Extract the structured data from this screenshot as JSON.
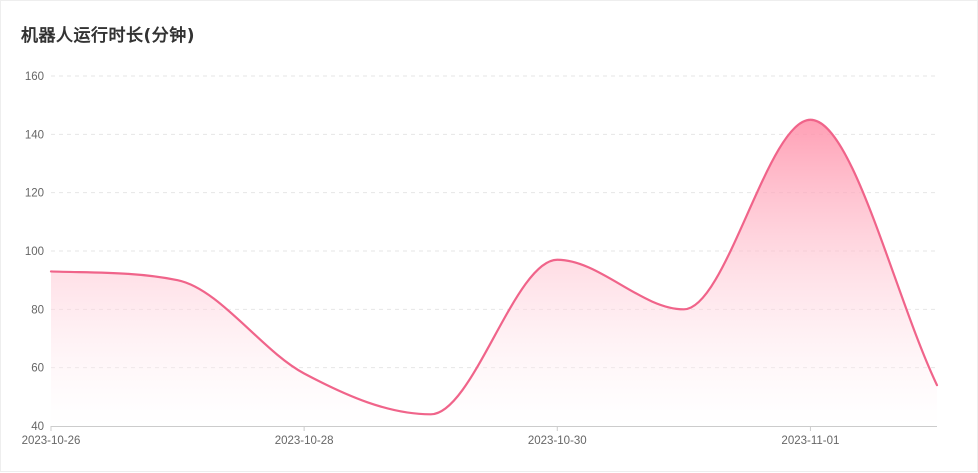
{
  "chart_data": {
    "type": "area",
    "title": "机器人运行时长(分钟)",
    "xlabel": "",
    "ylabel": "",
    "x_tick_labels": [
      "2023-10-26",
      "2023-10-28",
      "2023-10-30",
      "2023-11-01"
    ],
    "x": [
      "2023-10-26",
      "2023-10-27",
      "2023-10-28",
      "2023-10-29",
      "2023-10-30",
      "2023-10-31",
      "2023-11-01",
      "2023-11-02"
    ],
    "series": [
      {
        "values": [
          93,
          90,
          58,
          44,
          97,
          80,
          145,
          54
        ]
      }
    ],
    "ylim": [
      40,
      160
    ],
    "y_ticks": [
      40,
      60,
      80,
      100,
      120,
      140,
      160
    ],
    "grid": true,
    "smooth": true,
    "colors": {
      "line": "#f0648a",
      "fill_top": "#ff8fa8",
      "fill_bottom": "#ffffff"
    }
  }
}
